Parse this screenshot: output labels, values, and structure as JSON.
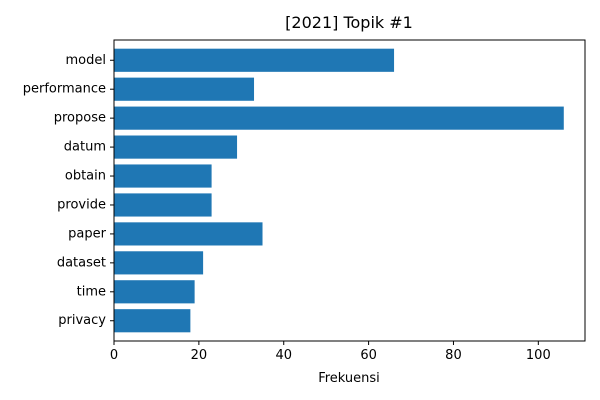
{
  "chart_data": {
    "type": "bar",
    "orientation": "horizontal",
    "title": "[2021] Topik #1",
    "xlabel": "Frekuensi",
    "ylabel": "",
    "categories": [
      "model",
      "performance",
      "propose",
      "datum",
      "obtain",
      "provide",
      "paper",
      "dataset",
      "time",
      "privacy"
    ],
    "values": [
      66,
      33,
      106,
      29,
      23,
      23,
      35,
      21,
      19,
      18
    ],
    "xlim": [
      0,
      111
    ],
    "xticks": [
      0,
      20,
      40,
      60,
      80,
      100
    ],
    "grid": false,
    "legend": "none",
    "bar_color": "#1f77b4"
  }
}
